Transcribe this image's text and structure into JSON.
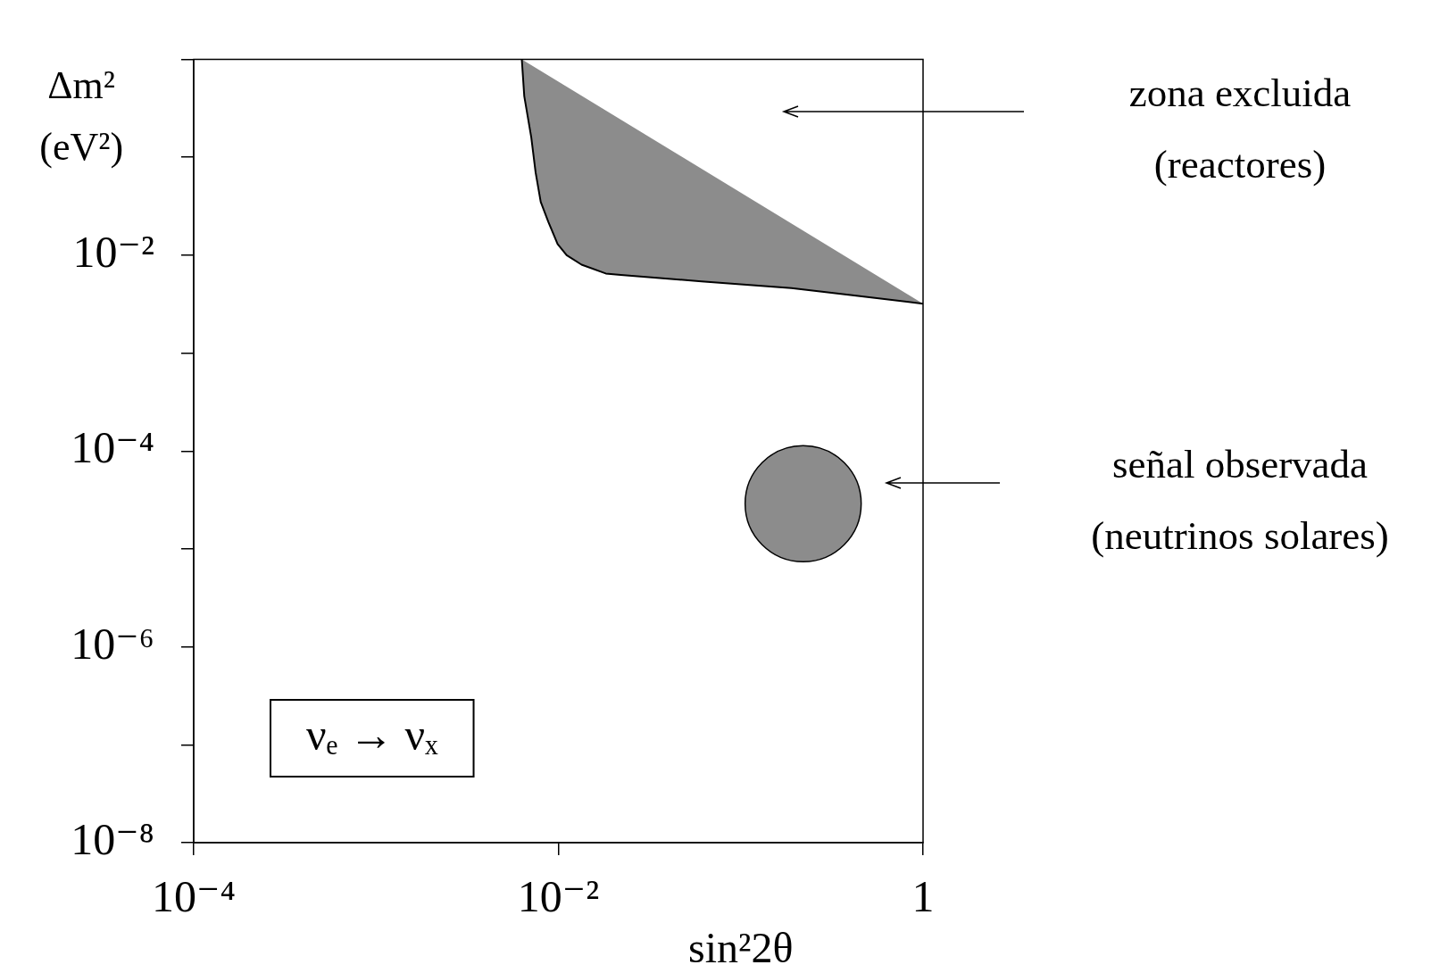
{
  "chart_data": {
    "type": "area",
    "xlabel": "sin²2θ",
    "ylabel": "Δm² (eV²)",
    "series": [
      {
        "x": [
          0.0063,
          0.0065,
          0.0071,
          0.0075,
          0.008,
          0.0088,
          0.0099,
          0.0111,
          0.0134,
          0.0182,
          0.022,
          0.061,
          0.19,
          0.41,
          1
        ],
        "values": [
          1,
          0.42,
          0.16,
          0.07,
          0.035,
          0.022,
          0.013,
          0.01,
          0.008,
          0.0065,
          0.0063,
          0.0054,
          0.0046,
          0.0039,
          0.0032
        ],
        "color": "#8c8c8c"
      },
      {
        "type": "bubble",
        "x": [
          0.22
        ],
        "values": [
          2.9e-05
        ],
        "sizes": [
          1
        ],
        "color": "#8c8c8c"
      }
    ],
    "xlim": [
      0.0001,
      1
    ],
    "ylim": [
      1e-08,
      1
    ],
    "xticks": [
      {
        "value": 0.0001,
        "label": "10⁻⁴"
      },
      {
        "value": 0.01,
        "label": "10⁻²"
      },
      1
    ],
    "yticks": [
      {
        "value": 1e-08,
        "label": "10⁻⁸"
      },
      {
        "value": 1e-07,
        "label": null
      },
      {
        "value": 1e-06,
        "label": "10⁻⁶"
      },
      {
        "value": 1e-05,
        "label": null
      },
      {
        "value": 0.0001,
        "label": "10⁻⁴"
      },
      {
        "value": 0.001,
        "label": null
      },
      {
        "value": 0.01,
        "label": "10⁻²"
      },
      {
        "value": 0.1,
        "label": null
      },
      {
        "value": 1,
        "label": null
      }
    ],
    "log": "xy",
    "grid": false,
    "legend": false,
    "annotations": [
      "zona excluida (reactores)",
      "señal observada (neutrinos solares)",
      "νₑ → νₓ"
    ]
  }
}
